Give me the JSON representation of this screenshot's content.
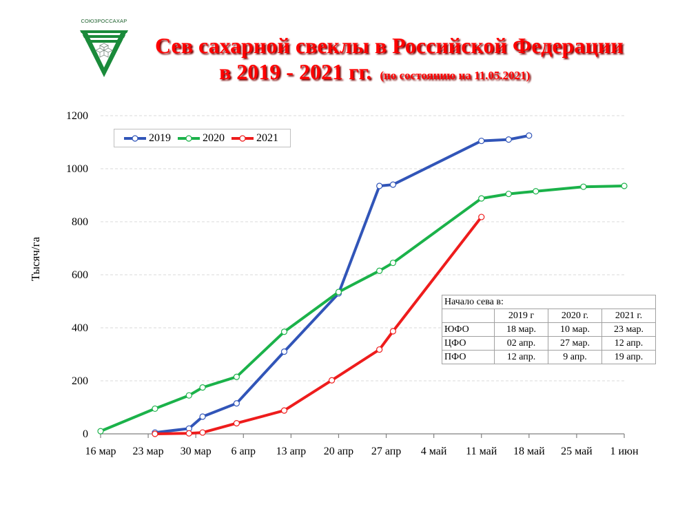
{
  "header": {
    "logo_text": "СОЮЗРОССАХАР",
    "title_line1": "Сев сахарной свеклы в Российской Федерации",
    "title_line2": "в 2019 - 2021 гг.",
    "title_note": "(по состоянию на 11.05.2021)"
  },
  "colors": {
    "s2019": "#3155b8",
    "s2020": "#1bb24a",
    "s2021": "#ee1c1c",
    "grid": "#d9d9d9",
    "title": "#ff0000"
  },
  "chart_data": {
    "type": "line",
    "ylabel": "Тысяч/га",
    "xlabel": "",
    "ylim": [
      0,
      1200
    ],
    "yticks": [
      0,
      200,
      400,
      600,
      800,
      1000,
      1200
    ],
    "x_axis_type": "date",
    "x_range": [
      "2021-03-16",
      "2021-06-01"
    ],
    "xticks": [
      {
        "date": "2021-03-16",
        "label": "16 мар"
      },
      {
        "date": "2021-03-23",
        "label": "23 мар"
      },
      {
        "date": "2021-03-30",
        "label": "30 мар"
      },
      {
        "date": "2021-04-06",
        "label": "6 апр"
      },
      {
        "date": "2021-04-13",
        "label": "13 апр"
      },
      {
        "date": "2021-04-20",
        "label": "20 апр"
      },
      {
        "date": "2021-04-27",
        "label": "27 апр"
      },
      {
        "date": "2021-05-04",
        "label": "4 май"
      },
      {
        "date": "2021-05-11",
        "label": "11 май"
      },
      {
        "date": "2021-05-18",
        "label": "18 май"
      },
      {
        "date": "2021-05-25",
        "label": "25 май"
      },
      {
        "date": "2021-06-01",
        "label": "1 июн"
      }
    ],
    "grid": "horizontal dashed",
    "legend_position": "top-left",
    "series": [
      {
        "name": "2019",
        "color_key": "s2019",
        "points": [
          {
            "x": "2021-03-24",
            "y": 5
          },
          {
            "x": "2021-03-29",
            "y": 20
          },
          {
            "x": "2021-03-31",
            "y": 65
          },
          {
            "x": "2021-04-05",
            "y": 115
          },
          {
            "x": "2021-04-12",
            "y": 310
          },
          {
            "x": "2021-04-20",
            "y": 530
          },
          {
            "x": "2021-04-26",
            "y": 935
          },
          {
            "x": "2021-04-28",
            "y": 940
          },
          {
            "x": "2021-05-11",
            "y": 1105
          },
          {
            "x": "2021-05-15",
            "y": 1110
          },
          {
            "x": "2021-05-18",
            "y": 1125
          }
        ]
      },
      {
        "name": "2020",
        "color_key": "s2020",
        "points": [
          {
            "x": "2021-03-16",
            "y": 10
          },
          {
            "x": "2021-03-24",
            "y": 95
          },
          {
            "x": "2021-03-29",
            "y": 145
          },
          {
            "x": "2021-03-31",
            "y": 175
          },
          {
            "x": "2021-04-05",
            "y": 215
          },
          {
            "x": "2021-04-12",
            "y": 385
          },
          {
            "x": "2021-04-20",
            "y": 535
          },
          {
            "x": "2021-04-26",
            "y": 615
          },
          {
            "x": "2021-04-28",
            "y": 645
          },
          {
            "x": "2021-05-11",
            "y": 888
          },
          {
            "x": "2021-05-15",
            "y": 905
          },
          {
            "x": "2021-05-19",
            "y": 915
          },
          {
            "x": "2021-05-26",
            "y": 932
          },
          {
            "x": "2021-06-01",
            "y": 935
          }
        ]
      },
      {
        "name": "2021",
        "color_key": "s2021",
        "points": [
          {
            "x": "2021-03-24",
            "y": 0
          },
          {
            "x": "2021-03-29",
            "y": 2
          },
          {
            "x": "2021-03-31",
            "y": 5
          },
          {
            "x": "2021-04-05",
            "y": 40
          },
          {
            "x": "2021-04-12",
            "y": 88
          },
          {
            "x": "2021-04-19",
            "y": 202
          },
          {
            "x": "2021-04-26",
            "y": 318
          },
          {
            "x": "2021-04-28",
            "y": 387
          },
          {
            "x": "2021-05-11",
            "y": 818
          }
        ]
      }
    ]
  },
  "sowing_table": {
    "caption": "Начало сева в:",
    "columns": [
      "2019 г",
      "2020  г.",
      "2021 г."
    ],
    "rows": [
      {
        "region": "ЮФО",
        "values": [
          "18 мар.",
          "10 мар.",
          "23 мар."
        ]
      },
      {
        "region": "ЦФО",
        "values": [
          "02 апр.",
          "27 мар.",
          "12 апр."
        ]
      },
      {
        "region": "ПФО",
        "values": [
          "12 апр.",
          "9 апр.",
          "19 апр."
        ]
      }
    ]
  }
}
